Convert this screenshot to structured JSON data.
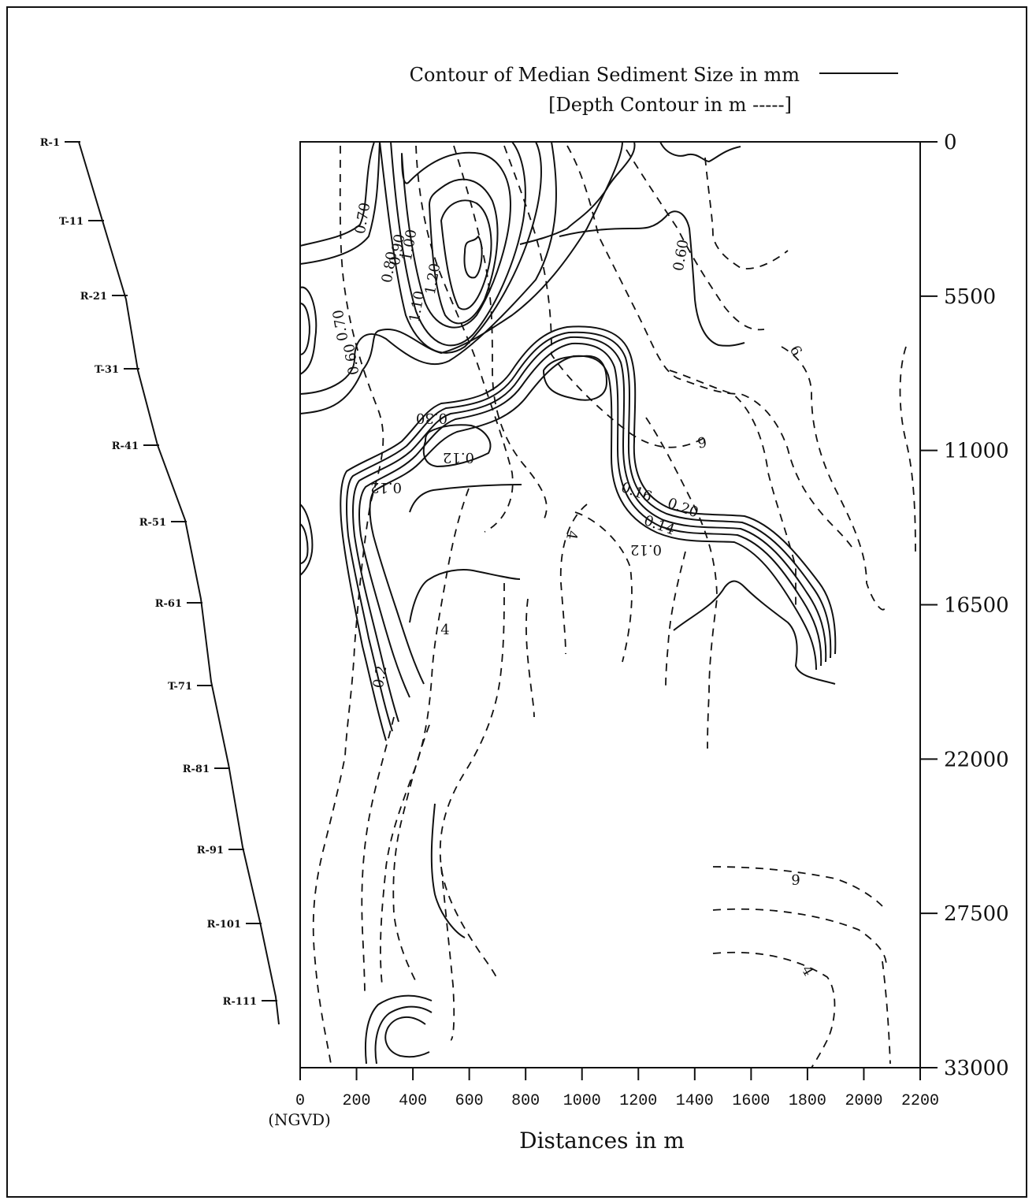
{
  "chart_data": {
    "type": "contour",
    "legend": {
      "solid_label": "Contour of Median Sediment Size in mm",
      "dashed_label": "[Depth Contour in m -----]"
    },
    "xlabel": "Distances in m",
    "x_origin_label": "(NGVD)",
    "xlim": [
      0,
      2200
    ],
    "x_ticks": [
      "0",
      "200",
      "400",
      "600",
      "800",
      "1000",
      "1200",
      "1400",
      "1600",
      "1800",
      "2000",
      "2200"
    ],
    "ylim": [
      0,
      33000
    ],
    "y_ticks": [
      "0",
      "5500",
      "11000",
      "16500",
      "22000",
      "27500",
      "33000"
    ],
    "y_inverted": true,
    "shoreline_stations": [
      "R-1",
      "T-11",
      "R-21",
      "T-31",
      "R-41",
      "R-51",
      "R-61",
      "T-71",
      "R-81",
      "R-91",
      "R-101",
      "R-111"
    ],
    "contour_labels": {
      "sediment": [
        "0.70",
        "0.80",
        "0.90",
        "1.00",
        "1.20",
        "1.10",
        "0.70",
        "0.60",
        "0.60",
        "0.30",
        "0.12",
        "0.12",
        "0.16",
        "0.20",
        "0.14",
        "0.12",
        "0.2"
      ],
      "depth": [
        "6",
        "6",
        "4",
        "4",
        "6",
        "4"
      ]
    },
    "colors": {
      "ink": "#111111",
      "background": "#ffffff"
    }
  }
}
